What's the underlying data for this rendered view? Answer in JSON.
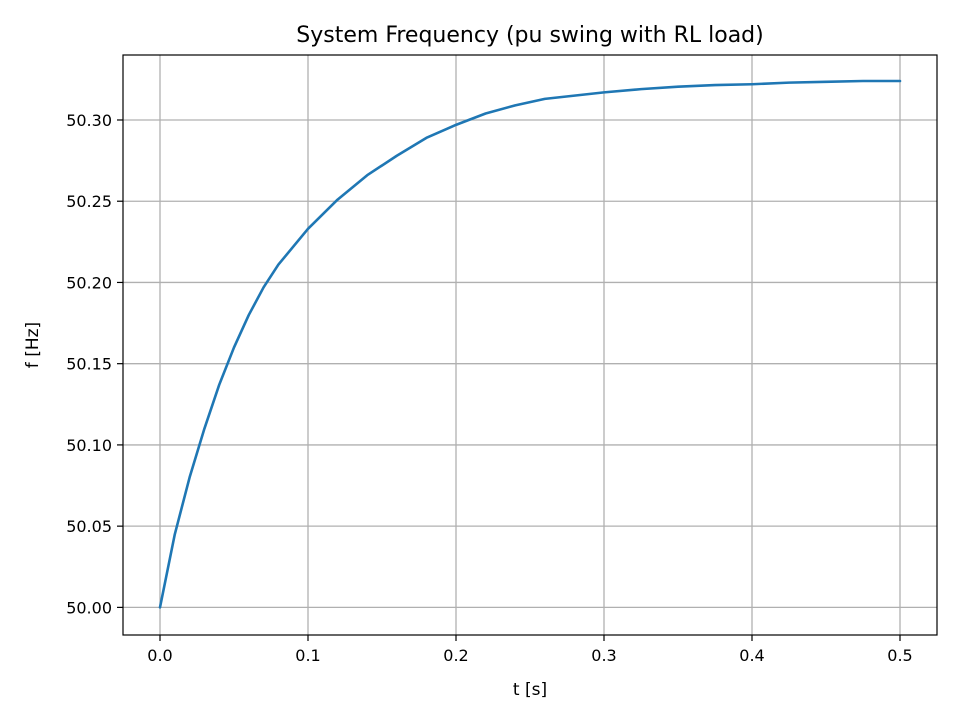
{
  "chart_data": {
    "type": "line",
    "title": "System Frequency (pu swing with RL load)",
    "xlabel": "t [s]",
    "ylabel": "f [Hz]",
    "xlim": [
      -0.025,
      0.525
    ],
    "ylim": [
      49.983,
      50.34
    ],
    "x_ticks": [
      0.0,
      0.1,
      0.2,
      0.3,
      0.4,
      0.5
    ],
    "x_tick_labels": [
      "0.0",
      "0.1",
      "0.2",
      "0.3",
      "0.4",
      "0.5"
    ],
    "y_ticks": [
      50.0,
      50.05,
      50.1,
      50.15,
      50.2,
      50.25,
      50.3
    ],
    "y_tick_labels": [
      "50.00",
      "50.05",
      "50.10",
      "50.15",
      "50.20",
      "50.25",
      "50.30"
    ],
    "grid": true,
    "colors": {
      "series": "#1f77b4",
      "grid": "#b0b0b0",
      "frame": "#000000"
    },
    "series": [
      {
        "x": [
          0.0,
          0.01,
          0.02,
          0.03,
          0.04,
          0.05,
          0.06,
          0.07,
          0.08,
          0.09,
          0.1,
          0.12,
          0.14,
          0.16,
          0.18,
          0.2,
          0.22,
          0.24,
          0.26,
          0.28,
          0.3,
          0.325,
          0.35,
          0.375,
          0.4,
          0.425,
          0.45,
          0.475,
          0.5
        ],
        "values": [
          50.0,
          50.045,
          50.08,
          50.11,
          50.137,
          50.16,
          50.18,
          50.197,
          50.211,
          50.222,
          50.233,
          50.251,
          50.266,
          50.278,
          50.289,
          50.297,
          50.304,
          50.309,
          50.313,
          50.315,
          50.317,
          50.319,
          50.3205,
          50.3215,
          50.322,
          50.323,
          50.3235,
          50.324,
          50.324
        ]
      }
    ]
  }
}
